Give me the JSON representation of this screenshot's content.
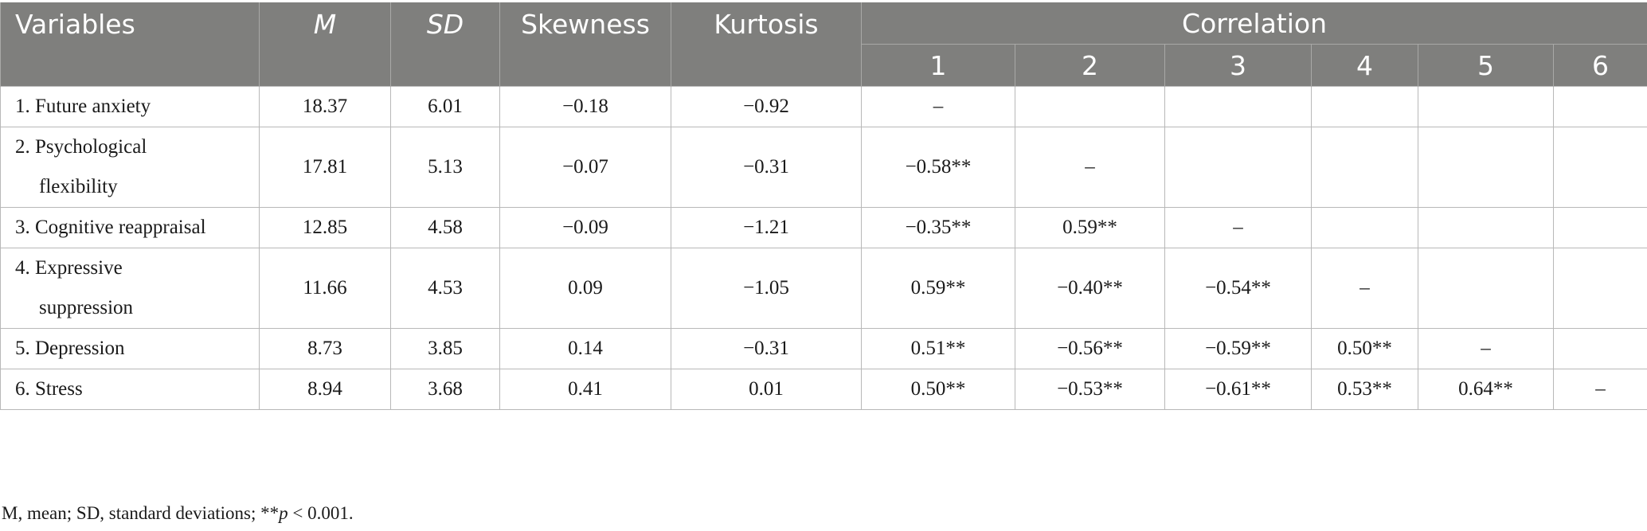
{
  "header": {
    "variables": "Variables",
    "m": "M",
    "sd": "SD",
    "skewness": "Skewness",
    "kurtosis": "Kurtosis",
    "correlation": "Correlation",
    "corr_cols": [
      "1",
      "2",
      "3",
      "4",
      "5",
      "6"
    ]
  },
  "rows": [
    {
      "label1": "1. Future anxiety",
      "label2": "",
      "m": "18.37",
      "sd": "6.01",
      "skew": "−0.18",
      "kurt": "−0.92",
      "c": [
        "–",
        "",
        "",
        "",
        "",
        ""
      ]
    },
    {
      "label1": "2. Psychological",
      "label2": "flexibility",
      "m": "17.81",
      "sd": "5.13",
      "skew": "−0.07",
      "kurt": "−0.31",
      "c": [
        "−0.58**",
        "–",
        "",
        "",
        "",
        ""
      ]
    },
    {
      "label1": "3. Cognitive reappraisal",
      "label2": "",
      "m": "12.85",
      "sd": "4.58",
      "skew": "−0.09",
      "kurt": "−1.21",
      "c": [
        "−0.35**",
        "0.59**",
        "–",
        "",
        "",
        ""
      ]
    },
    {
      "label1": "4. Expressive",
      "label2": "suppression",
      "m": "11.66",
      "sd": "4.53",
      "skew": "0.09",
      "kurt": "−1.05",
      "c": [
        "0.59**",
        "−0.40**",
        "−0.54**",
        "–",
        "",
        ""
      ]
    },
    {
      "label1": "5. Depression",
      "label2": "",
      "m": "8.73",
      "sd": "3.85",
      "skew": "0.14",
      "kurt": "−0.31",
      "c": [
        "0.51**",
        "−0.56**",
        "−0.59**",
        "0.50**",
        "–",
        ""
      ]
    },
    {
      "label1": "6. Stress",
      "label2": "",
      "m": "8.94",
      "sd": "3.68",
      "skew": "0.41",
      "kurt": "0.01",
      "c": [
        "0.50**",
        "−0.53**",
        "−0.61**",
        "0.53**",
        "0.64**",
        "–"
      ]
    }
  ],
  "note": {
    "prefix": "M, mean; SD, standard deviations; **",
    "p": "p",
    "suffix": " < 0.001."
  }
}
